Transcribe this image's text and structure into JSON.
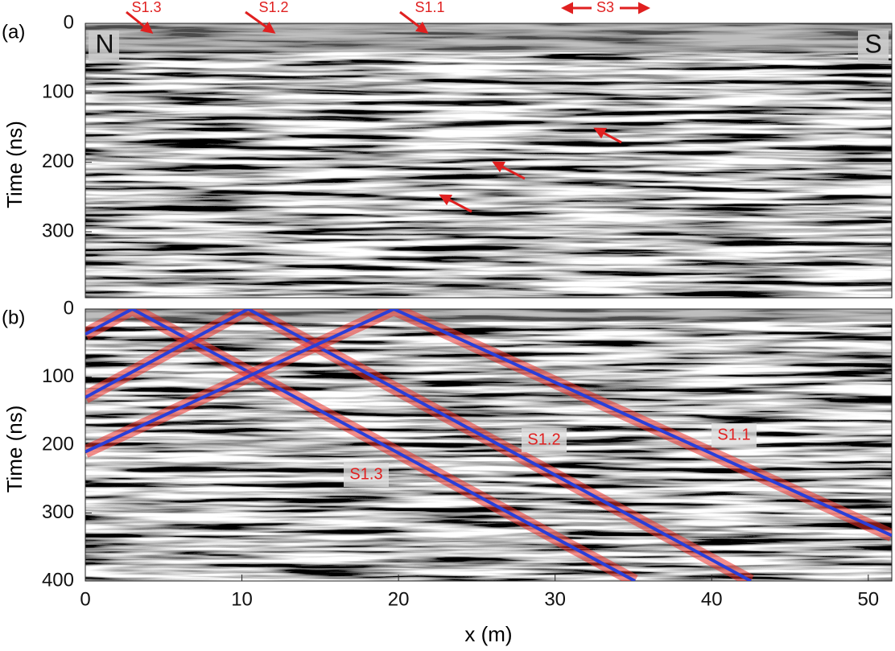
{
  "chart_data": [
    {
      "type": "radargram",
      "panel_label": "(a)",
      "ylabel": "Time (ns)",
      "xlim": [
        0,
        51.5
      ],
      "ylim": [
        0,
        395
      ],
      "yticks": [
        0,
        100,
        200,
        300
      ],
      "annotations": [
        "N",
        "S",
        "S1.3",
        "S1.2",
        "S1.1",
        "S3"
      ],
      "annotation_color": "#e02020"
    },
    {
      "type": "line",
      "panel_label": "(b)",
      "ylabel": "Time (ns)",
      "xlabel": "x (m)",
      "xlim": [
        0,
        51.5
      ],
      "ylim": [
        0,
        400
      ],
      "yticks": [
        0,
        100,
        200,
        300,
        400
      ],
      "xticks": [
        0,
        10,
        20,
        30,
        40,
        50
      ],
      "glow_color": "#e8302a",
      "label_color": "#e02020",
      "series": [
        {
          "name": "S1.3",
          "color": "#2a3fd8",
          "x": [
            0,
            3,
            35.1
          ],
          "values": [
            37,
            0,
            400
          ]
        },
        {
          "name": "S1.2",
          "color": "#2a3fd8",
          "x": [
            0,
            10.4,
            42.5
          ],
          "values": [
            130,
            0,
            400
          ]
        },
        {
          "name": "S1.1",
          "color": "#2a3fd8",
          "x": [
            0,
            19.7,
            51.5
          ],
          "values": [
            210,
            0,
            333
          ]
        }
      ]
    }
  ]
}
